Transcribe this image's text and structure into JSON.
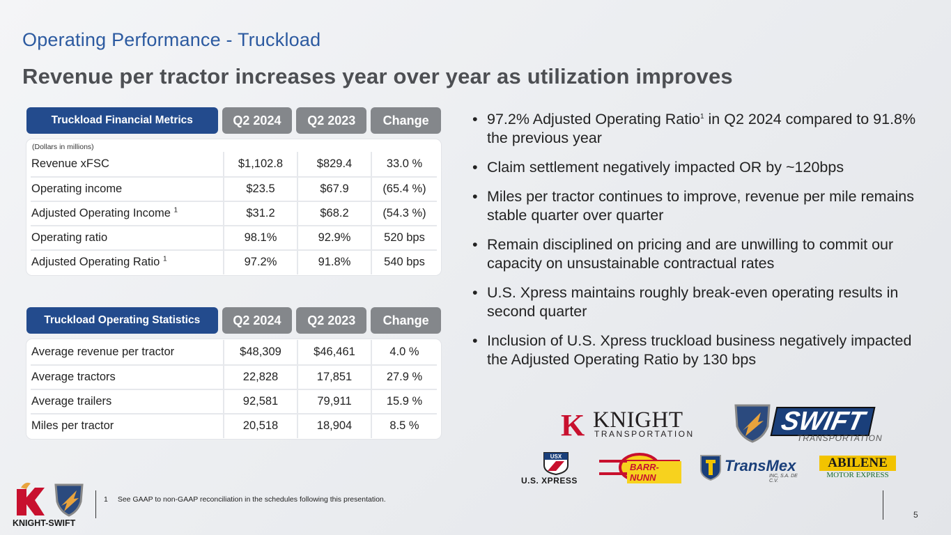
{
  "slide": {
    "title": "Operating Performance - Truckload",
    "subtitle": "Revenue per tractor increases year over year as utilization improves",
    "page_number": "5"
  },
  "financial_table": {
    "header": "Truckload Financial Metrics",
    "columns": [
      "Q2 2024",
      "Q2 2023",
      "Change"
    ],
    "units": "(Dollars in millions)",
    "rows": [
      {
        "label": "Revenue xFSC",
        "sup": "",
        "values": [
          "$1,102.8",
          "$829.4",
          "33.0 %"
        ]
      },
      {
        "label": "Operating income",
        "sup": "",
        "values": [
          "$23.5",
          "$67.9",
          "(65.4 %)"
        ]
      },
      {
        "label": "Adjusted Operating Income ",
        "sup": "1",
        "values": [
          "$31.2",
          "$68.2",
          "(54.3 %)"
        ]
      },
      {
        "label": "Operating ratio",
        "sup": "",
        "values": [
          "98.1%",
          "92.9%",
          "520 bps"
        ]
      },
      {
        "label": "Adjusted Operating Ratio ",
        "sup": "1",
        "values": [
          "97.2%",
          "91.8%",
          "540 bps"
        ]
      }
    ]
  },
  "statistics_table": {
    "header": "Truckload Operating Statistics",
    "columns": [
      "Q2 2024",
      "Q2 2023",
      "Change"
    ],
    "rows": [
      {
        "label": "Average revenue per tractor",
        "values": [
          "$48,309",
          "$46,461",
          "4.0 %"
        ]
      },
      {
        "label": "Average tractors",
        "values": [
          "22,828",
          "17,851",
          "27.9 %"
        ]
      },
      {
        "label": "Average trailers",
        "values": [
          "92,581",
          "79,911",
          "15.9 %"
        ]
      },
      {
        "label": "Miles per tractor",
        "values": [
          "20,518",
          "18,904",
          "8.5 %"
        ]
      }
    ]
  },
  "bullets": [
    {
      "pre": "97.2% Adjusted Operating Ratio",
      "sup": "1",
      "post": " in Q2 2024 compared to 91.8% the previous year"
    },
    {
      "pre": "Claim settlement negatively impacted OR by ~120bps",
      "sup": "",
      "post": ""
    },
    {
      "pre": "Miles per tractor continues to improve, revenue per mile remains stable quarter over quarter",
      "sup": "",
      "post": ""
    },
    {
      "pre": "Remain disciplined on pricing and are unwilling to commit our capacity on unsustainable contractual rates",
      "sup": "",
      "post": ""
    },
    {
      "pre": "U.S. Xpress maintains roughly break-even operating results in second quarter",
      "sup": "",
      "post": ""
    },
    {
      "pre": "Inclusion of U.S. Xpress truckload business negatively impacted the Adjusted Operating Ratio by 130 bps",
      "sup": "",
      "post": ""
    }
  ],
  "logos": {
    "knight": {
      "k": "K",
      "word": "KNIGHT",
      "sub": "TRANSPORTATION"
    },
    "swift": {
      "word": "SWIFT",
      "sub": "TRANSPORTATION"
    },
    "usx": {
      "badge": "USX",
      "name": "U.S. XPRESS"
    },
    "barr_nunn": {
      "name": "BARR-NUNN"
    },
    "transmex": {
      "name": "TransMex",
      "sub": "INC, S.A. DE C.V."
    },
    "abilene": {
      "name": "ABILENE",
      "sub": "MOTOR EXPRESS"
    },
    "knight_swift": {
      "name": "KNIGHT-SWIFT"
    }
  },
  "footnote": {
    "number": "1",
    "text": "See GAAP to non-GAAP reconciliation in the schedules following this presentation."
  },
  "colors": {
    "title_blue": "#2c5aa0",
    "header_navy": "#234b8d",
    "header_gray": "#84878b",
    "knight_red": "#c8102e"
  }
}
